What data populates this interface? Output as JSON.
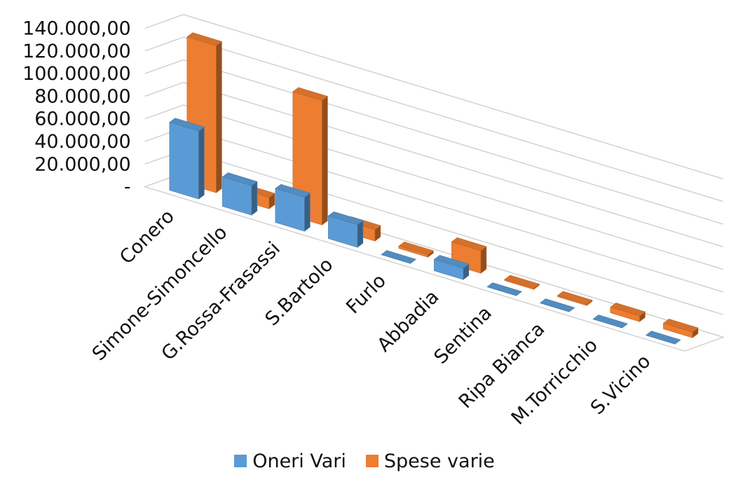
{
  "chart_data": {
    "type": "bar",
    "subtype": "3d-clustered-column",
    "title": "",
    "xlabel": "",
    "ylabel": "",
    "categories": [
      "Conero",
      "Simone-Simoncello",
      "G.Rossa-Frasassi",
      "S.Bartolo",
      "Furlo",
      "Abbadia",
      "Sentina",
      "Ripa Bianca",
      "M.Torricchio",
      "S.Vicino"
    ],
    "series": [
      {
        "name": "Oneri Vari",
        "color": "#5B9BD5",
        "values": [
          60000,
          26000,
          30000,
          20000,
          0,
          10000,
          0,
          0,
          0,
          0
        ]
      },
      {
        "name": "Spese varie",
        "color": "#ED7D31",
        "values": [
          130000,
          10000,
          110000,
          10000,
          2000,
          20000,
          1000,
          1000,
          5000,
          5000
        ]
      }
    ],
    "y_ticks": [
      "-",
      "20.000,00",
      "40.000,00",
      "60.000,00",
      "80.000,00",
      "100.000,00",
      "120.000,00",
      "140.000,00"
    ],
    "ylim": [
      0,
      140000
    ],
    "grid": true,
    "legend": "bottom"
  }
}
